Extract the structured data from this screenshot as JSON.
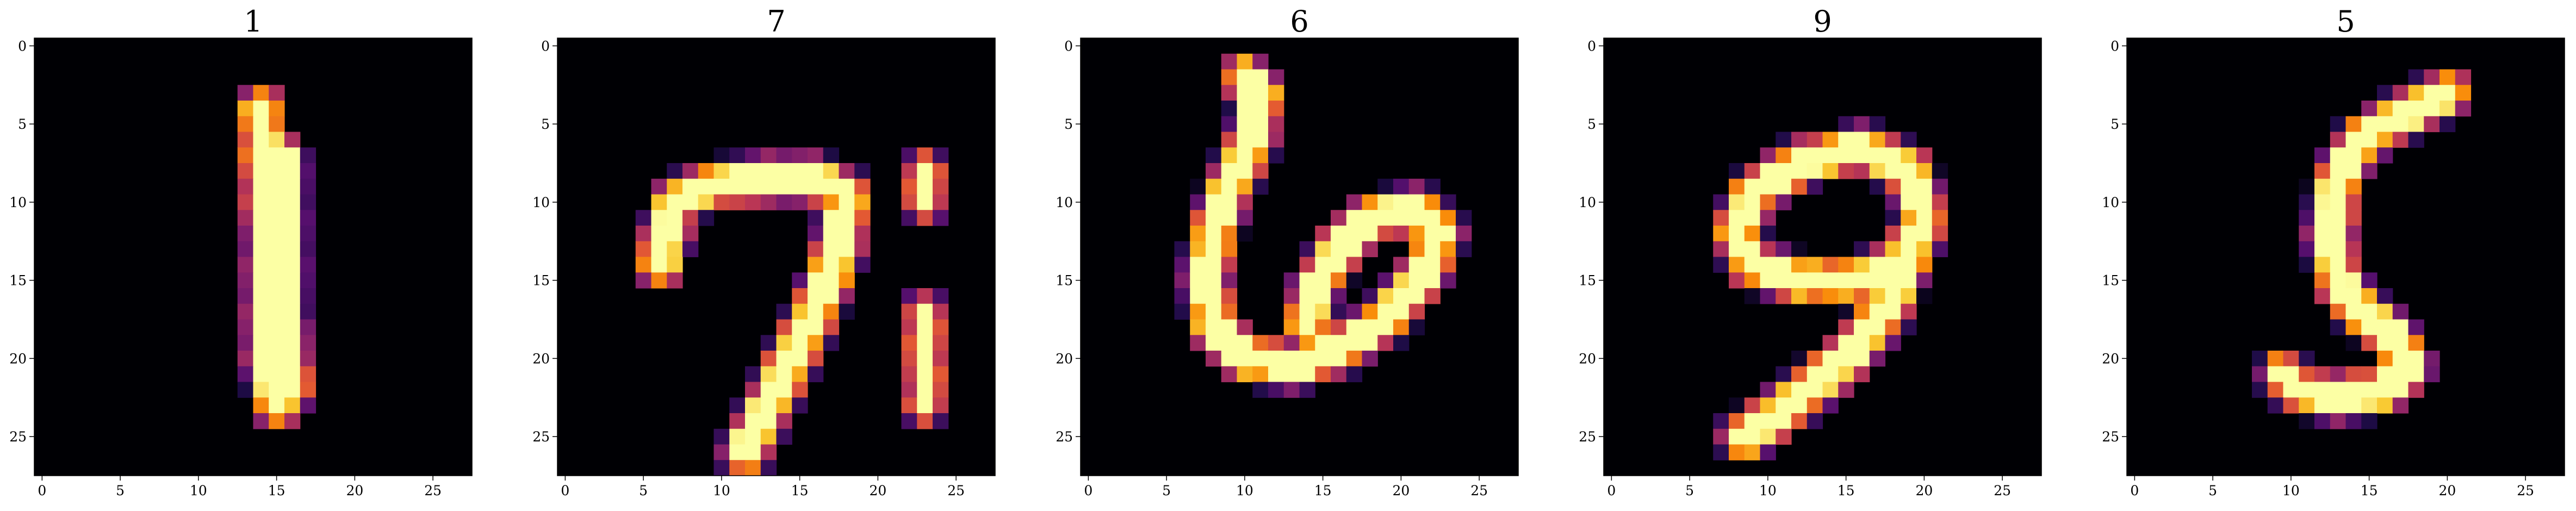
{
  "chart_data": [
    {
      "type": "heatmap",
      "title": "1",
      "colormap": "inferno",
      "xlim": [
        -0.5,
        27.5
      ],
      "ylim": [
        27.5,
        -0.5
      ],
      "xticks": [
        "0",
        "5",
        "10",
        "15",
        "20",
        "25"
      ],
      "yticks": [
        "0",
        "5",
        "10",
        "15",
        "20",
        "25"
      ],
      "strokes": [
        {
          "points": [
            [
              14,
              4
            ],
            [
              14.5,
              12
            ],
            [
              14.5,
              20
            ],
            [
              15,
              23
            ]
          ],
          "width": 1.6
        },
        {
          "points": [
            [
              15.5,
              7
            ],
            [
              15.5,
              17
            ],
            [
              16,
              22
            ]
          ],
          "width": 1.2
        }
      ]
    },
    {
      "type": "heatmap",
      "title": "7",
      "colormap": "inferno",
      "xlim": [
        -0.5,
        27.5
      ],
      "ylim": [
        27.5,
        -0.5
      ],
      "xticks": [
        "0",
        "5",
        "10",
        "15",
        "20",
        "25"
      ],
      "yticks": [
        "0",
        "5",
        "10",
        "15",
        "20",
        "25"
      ],
      "strokes": [
        {
          "points": [
            [
              6,
              14
            ],
            [
              7,
              10
            ],
            [
              9,
              9
            ],
            [
              13,
              8.5
            ],
            [
              16,
              8.5
            ],
            [
              18,
              9.5
            ]
          ],
          "width": 1.6
        },
        {
          "points": [
            [
              18,
              9.5
            ],
            [
              17.5,
              13
            ],
            [
              16,
              17
            ],
            [
              14,
              21
            ],
            [
              12.5,
              24
            ],
            [
              11.5,
              26
            ]
          ],
          "width": 1.7
        },
        {
          "points": [
            [
              23,
              8
            ],
            [
              23,
              10
            ]
          ],
          "width": 1.0
        },
        {
          "points": [
            [
              23,
              17
            ],
            [
              23,
              23
            ]
          ],
          "width": 1.0
        }
      ]
    },
    {
      "type": "heatmap",
      "title": "6",
      "colormap": "inferno",
      "xlim": [
        -0.5,
        27.5
      ],
      "ylim": [
        27.5,
        -0.5
      ],
      "xticks": [
        "0",
        "5",
        "10",
        "15",
        "20",
        "25"
      ],
      "yticks": [
        "0",
        "5",
        "10",
        "15",
        "20",
        "25"
      ],
      "strokes": [
        {
          "points": [
            [
              10,
              2
            ],
            [
              11,
              3
            ],
            [
              10.5,
              6
            ],
            [
              9,
              9
            ],
            [
              8,
              12
            ],
            [
              7.5,
              15
            ],
            [
              8,
              18
            ],
            [
              10,
              20
            ],
            [
              13,
              20.5
            ],
            [
              16,
              19.5
            ],
            [
              19,
              17.5
            ],
            [
              21.5,
              14.5
            ],
            [
              22.5,
              12
            ],
            [
              21,
              10.5
            ],
            [
              18,
              11
            ],
            [
              16,
              13
            ],
            [
              14.5,
              15.5
            ],
            [
              14,
              18
            ]
          ],
          "width": 1.6
        }
      ]
    },
    {
      "type": "heatmap",
      "title": "9",
      "colormap": "inferno",
      "xlim": [
        -0.5,
        27.5
      ],
      "ylim": [
        27.5,
        -0.5
      ],
      "xticks": [
        "0",
        "5",
        "10",
        "15",
        "20",
        "25"
      ],
      "yticks": [
        "0",
        "5",
        "10",
        "15",
        "20",
        "25"
      ],
      "strokes": [
        {
          "points": [
            [
              19,
              8
            ],
            [
              16,
              6.5
            ],
            [
              12,
              7.5
            ],
            [
              9,
              9.5
            ],
            [
              8,
              12
            ],
            [
              9,
              14
            ],
            [
              12,
              15
            ],
            [
              16,
              15
            ],
            [
              19,
              13.5
            ],
            [
              20,
              11
            ],
            [
              19,
              8
            ]
          ],
          "width": 1.6
        },
        {
          "points": [
            [
              19.5,
              12
            ],
            [
              17.5,
              17
            ],
            [
              15,
              20
            ],
            [
              12,
              22.5
            ],
            [
              10,
              24
            ],
            [
              8.5,
              25
            ]
          ],
          "width": 1.7
        }
      ]
    },
    {
      "type": "heatmap",
      "title": "5",
      "colormap": "inferno",
      "xlim": [
        -0.5,
        27.5
      ],
      "ylim": [
        27.5,
        -0.5
      ],
      "xticks": [
        "0",
        "5",
        "10",
        "15",
        "20",
        "25"
      ],
      "yticks": [
        "0",
        "5",
        "10",
        "15",
        "20",
        "25"
      ],
      "strokes": [
        {
          "points": [
            [
              20,
              3
            ],
            [
              17,
              4.5
            ],
            [
              14.5,
              6
            ],
            [
              13,
              8.5
            ],
            [
              12.5,
              12
            ],
            [
              13,
              15
            ],
            [
              14.5,
              17
            ],
            [
              16.5,
              18.5
            ],
            [
              17.5,
              20.5
            ],
            [
              16,
              22
            ],
            [
              13,
              22.5
            ],
            [
              10.5,
              22
            ],
            [
              9.5,
              21
            ]
          ],
          "width": 1.6
        }
      ]
    }
  ]
}
